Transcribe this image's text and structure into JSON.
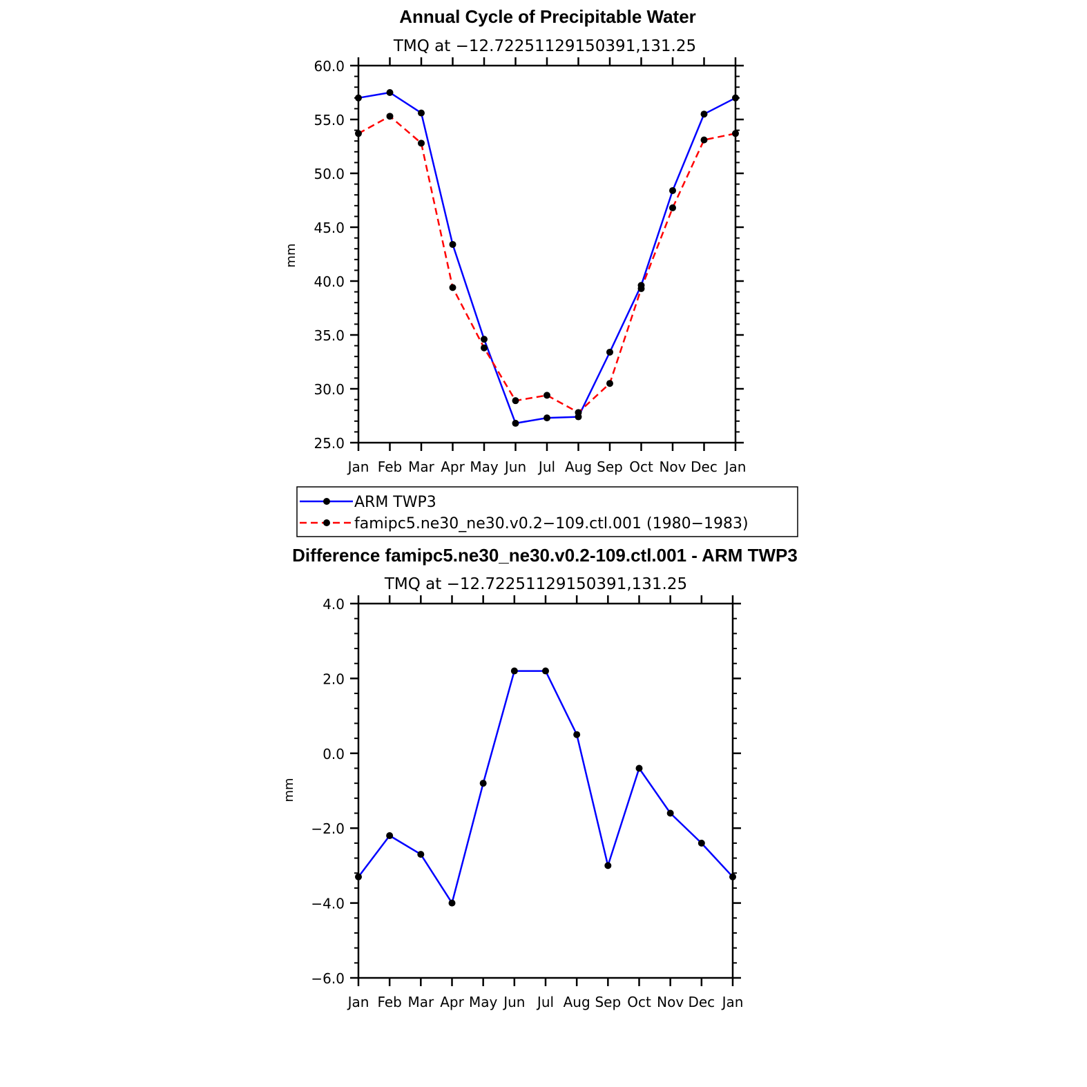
{
  "chart_data": [
    {
      "type": "line",
      "title": "Annual Cycle of Precipitable Water",
      "subtitle": "TMQ at −12.72251129150391,131.25",
      "xlabel": "",
      "ylabel": "mm",
      "categories": [
        "Jan",
        "Feb",
        "Mar",
        "Apr",
        "May",
        "Jun",
        "Jul",
        "Aug",
        "Sep",
        "Oct",
        "Nov",
        "Dec",
        "Jan"
      ],
      "ylim": [
        25.0,
        60.0
      ],
      "yticks": [
        25.0,
        30.0,
        35.0,
        40.0,
        45.0,
        50.0,
        55.0,
        60.0
      ],
      "ytick_labels": [
        "25.0",
        "30.0",
        "35.0",
        "40.0",
        "45.0",
        "50.0",
        "55.0",
        "60.0"
      ],
      "series": [
        {
          "name": "ARM TWP3",
          "color": "#0000ff",
          "dash": "solid",
          "values": [
            57.0,
            57.5,
            55.6,
            43.4,
            34.6,
            26.8,
            27.3,
            27.4,
            33.4,
            39.6,
            48.4,
            55.5,
            57.0
          ]
        },
        {
          "name": "famipc5.ne30_ne30.v0.2−109.ctl.001 (1980−1983)",
          "color": "#ff0000",
          "dash": "dashed",
          "values": [
            53.7,
            55.3,
            52.8,
            39.4,
            33.8,
            28.9,
            29.4,
            27.8,
            30.5,
            39.3,
            46.8,
            53.1,
            53.7
          ]
        }
      ],
      "legend": "bottom"
    },
    {
      "type": "line",
      "title": "Difference famipc5.ne30_ne30.v0.2-109.ctl.001 - ARM TWP3",
      "subtitle": "TMQ at −12.72251129150391,131.25",
      "xlabel": "",
      "ylabel": "mm",
      "categories": [
        "Jan",
        "Feb",
        "Mar",
        "Apr",
        "May",
        "Jun",
        "Jul",
        "Aug",
        "Sep",
        "Oct",
        "Nov",
        "Dec",
        "Jan"
      ],
      "ylim": [
        -6.0,
        4.0
      ],
      "yticks": [
        -6.0,
        -4.0,
        -2.0,
        0.0,
        2.0,
        4.0
      ],
      "ytick_labels": [
        "−6.0",
        "−4.0",
        "−2.0",
        "0.0",
        "2.0",
        "4.0"
      ],
      "series": [
        {
          "name": "Difference",
          "color": "#0000ff",
          "dash": "solid",
          "values": [
            -3.3,
            -2.2,
            -2.7,
            -4.0,
            -0.8,
            2.2,
            2.2,
            0.5,
            -3.0,
            -0.4,
            -1.6,
            -2.4,
            -3.3
          ]
        }
      ]
    }
  ]
}
